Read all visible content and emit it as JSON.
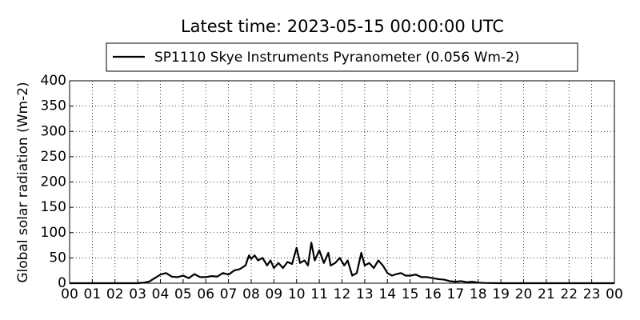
{
  "chart_data": {
    "type": "line",
    "title": "Latest time: 2023-05-15 00:00:00 UTC",
    "y_label": "Global solar radiation (Wm-2)",
    "x": [
      0,
      1,
      2,
      3,
      3.25,
      3.5,
      3.75,
      4.0,
      4.25,
      4.5,
      4.75,
      5.0,
      5.25,
      5.5,
      5.75,
      6.0,
      6.25,
      6.5,
      6.75,
      7.0,
      7.25,
      7.5,
      7.75,
      7.9,
      8.0,
      8.15,
      8.3,
      8.5,
      8.7,
      8.85,
      9.0,
      9.2,
      9.4,
      9.6,
      9.8,
      10.0,
      10.15,
      10.35,
      10.5,
      10.65,
      10.8,
      11.0,
      11.2,
      11.4,
      11.5,
      11.7,
      11.9,
      12.1,
      12.25,
      12.45,
      12.65,
      12.85,
      13.0,
      13.2,
      13.4,
      13.6,
      13.8,
      14.0,
      14.2,
      14.4,
      14.6,
      14.8,
      15.0,
      15.25,
      15.5,
      15.75,
      16.0,
      16.25,
      16.5,
      16.75,
      17.0,
      17.25,
      17.5,
      17.75,
      18.0,
      18.25,
      19,
      24
    ],
    "series": [
      {
        "name": "SP1110 Skye Instruments Pyranometer (0.056 Wm-2)",
        "color": "#000000",
        "values": [
          0,
          0,
          0,
          0,
          1,
          3,
          10,
          17,
          20,
          13,
          12,
          15,
          10,
          18,
          12,
          12,
          14,
          13,
          20,
          17,
          25,
          28,
          35,
          55,
          48,
          55,
          45,
          50,
          35,
          45,
          30,
          40,
          30,
          42,
          38,
          70,
          40,
          45,
          35,
          80,
          45,
          65,
          40,
          60,
          35,
          40,
          50,
          35,
          45,
          15,
          20,
          60,
          35,
          40,
          30,
          45,
          35,
          20,
          15,
          18,
          20,
          15,
          15,
          17,
          12,
          12,
          10,
          8,
          7,
          4,
          3,
          4,
          2,
          3,
          1,
          0.5,
          0,
          0
        ]
      }
    ],
    "xlim": [
      0,
      24
    ],
    "xticks": [
      {
        "value": 0,
        "label": "00"
      },
      {
        "value": 1,
        "label": "01"
      },
      {
        "value": 2,
        "label": "02"
      },
      {
        "value": 3,
        "label": "03"
      },
      {
        "value": 4,
        "label": "04"
      },
      {
        "value": 5,
        "label": "05"
      },
      {
        "value": 6,
        "label": "06"
      },
      {
        "value": 7,
        "label": "07"
      },
      {
        "value": 8,
        "label": "08"
      },
      {
        "value": 9,
        "label": "09"
      },
      10,
      11,
      12,
      13,
      14,
      15,
      16,
      17,
      18,
      19,
      20,
      21,
      22,
      23,
      {
        "value": 24,
        "label": "00"
      }
    ],
    "ylim": [
      0,
      400
    ],
    "yticks": [
      0,
      50,
      100,
      150,
      200,
      250,
      300,
      350,
      400
    ],
    "grid": true,
    "legend": "top"
  }
}
